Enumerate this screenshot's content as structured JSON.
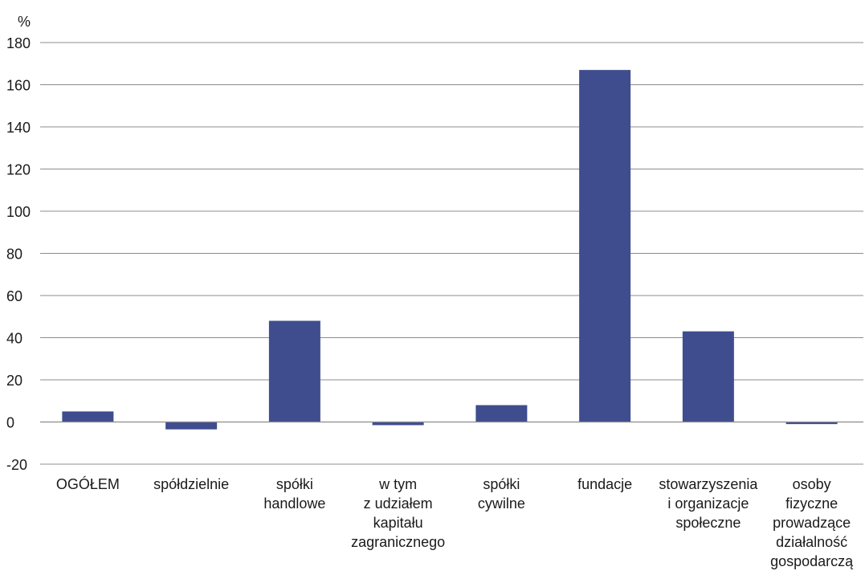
{
  "chart_data": {
    "type": "bar",
    "unit_label": "%",
    "categories": [
      [
        "OGÓŁEM"
      ],
      [
        "spółdzielnie"
      ],
      [
        "spółki",
        "handlowe"
      ],
      [
        "w tym",
        "z udziałem",
        "kapitału",
        "zagranicznego"
      ],
      [
        "spółki",
        "cywilne"
      ],
      [
        "fundacje"
      ],
      [
        "stowarzyszenia",
        "i organizacje",
        "społeczne"
      ],
      [
        "osoby",
        "fizyczne",
        "prowadzące",
        "działalność",
        "gospodarczą"
      ]
    ],
    "values": [
      5,
      -3.5,
      48,
      -1.5,
      8,
      167,
      43,
      -1
    ],
    "ylim": [
      -20,
      180
    ],
    "yticks": [
      180,
      160,
      140,
      120,
      100,
      80,
      60,
      40,
      20,
      0,
      -20
    ],
    "grid": true,
    "bar_color": "#3f4d8f",
    "title": "",
    "xlabel": "",
    "ylabel": ""
  }
}
